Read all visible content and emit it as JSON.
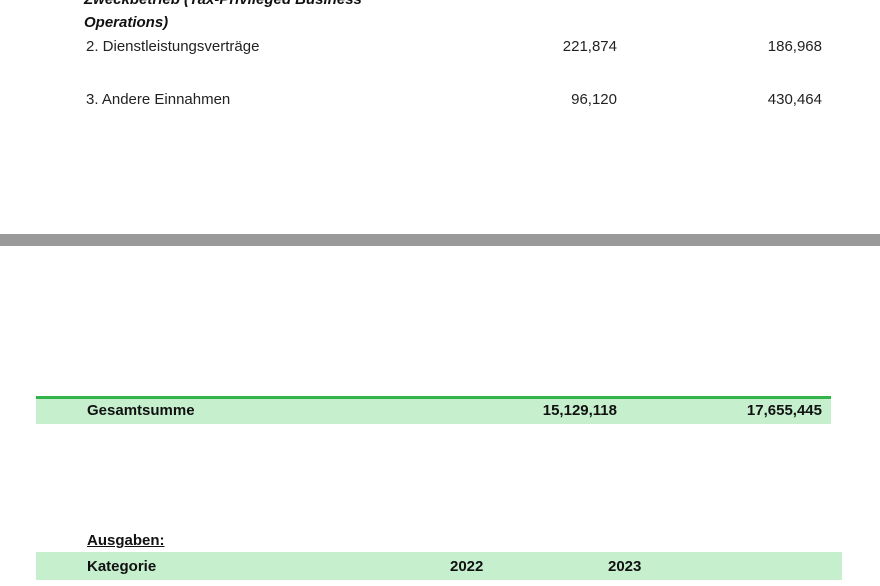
{
  "income_section": {
    "heading_line1": "Zweckbetrieb (Tax-Privileged Business",
    "heading_line2": "Operations)",
    "rows": [
      {
        "label": "2. Dienstleistungsverträge",
        "value_2022": "221,874",
        "value_2023": "186,968"
      },
      {
        "label": "3. Andere Einnahmen",
        "value_2022": "96,120",
        "value_2023": "430,464"
      }
    ]
  },
  "total": {
    "label": "Gesamtsumme",
    "value_2022": "15,129,118",
    "value_2023": "17,655,445"
  },
  "expenses": {
    "title": "Ausgaben:",
    "header": {
      "category": "Kategorie",
      "year_1": "2022",
      "year_2": "2023"
    }
  },
  "colors": {
    "band_fill": "#c6efce",
    "band_border": "#33b44a",
    "divider": "#9a9a9a"
  }
}
